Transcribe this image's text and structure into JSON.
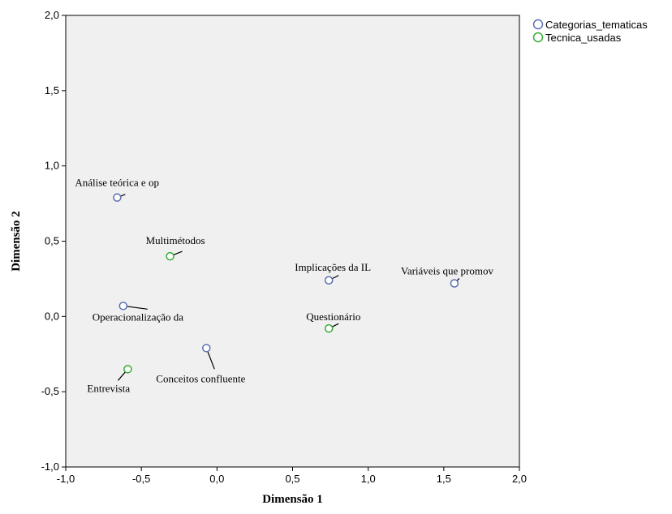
{
  "chart_data": {
    "type": "scatter",
    "title": "",
    "xlabel": "Dimensão 1",
    "ylabel": "Dimensão 2",
    "xlim": [
      -1.0,
      2.0
    ],
    "ylim": [
      -1.0,
      2.0
    ],
    "x_ticks": [
      "-1,0",
      "-0,5",
      "0,0",
      "0,5",
      "1,0",
      "1,5",
      "2,0"
    ],
    "y_ticks": [
      "-1,0",
      "-0,5",
      "0,0",
      "0,5",
      "1,0",
      "1,5",
      "2,0"
    ],
    "grid": false,
    "legend_position": "top-right outside",
    "series": [
      {
        "name": "Categorias_tematicas",
        "color": "#5a6fb0",
        "points": [
          {
            "label": "Análise teórica e op",
            "x": -0.66,
            "y": 0.79
          },
          {
            "label": "Operacionalização da",
            "x": -0.62,
            "y": 0.07
          },
          {
            "label": "Conceitos confluente",
            "x": -0.07,
            "y": -0.21
          },
          {
            "label": "Implicações da IL",
            "x": 0.74,
            "y": 0.24
          },
          {
            "label": "Variáveis que promov",
            "x": 1.57,
            "y": 0.22
          }
        ]
      },
      {
        "name": "Tecnica_usadas",
        "color": "#33aa33",
        "points": [
          {
            "label": "Multimétodos",
            "x": -0.31,
            "y": 0.4
          },
          {
            "label": "Questionário",
            "x": 0.74,
            "y": -0.08
          },
          {
            "label": "Entrevista",
            "x": -0.59,
            "y": -0.35
          }
        ]
      }
    ]
  }
}
